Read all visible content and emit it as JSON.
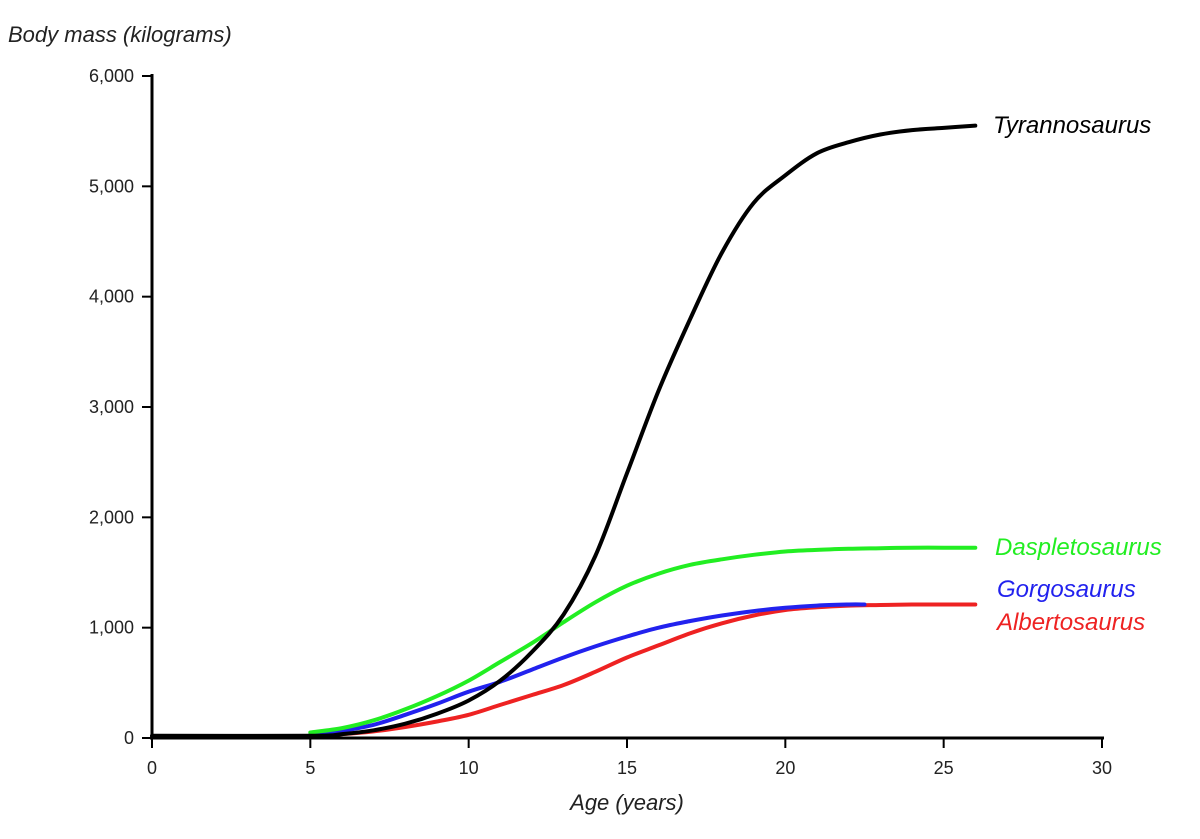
{
  "chart_data": {
    "type": "line",
    "title": "",
    "xlabel": "Age (years)",
    "ylabel": "Body mass (kilograms)",
    "xlim": [
      0,
      30
    ],
    "ylim": [
      0,
      6000
    ],
    "xticks": [
      0,
      5,
      10,
      15,
      20,
      25,
      30
    ],
    "xtick_labels": [
      "0",
      "5",
      "10",
      "15",
      "20",
      "25",
      "30"
    ],
    "yticks": [
      0,
      1000,
      2000,
      3000,
      4000,
      5000,
      6000
    ],
    "ytick_labels": [
      "0",
      "1,000",
      "2,000",
      "3,000",
      "4,000",
      "5,000",
      "6,000"
    ],
    "grid": false,
    "legend": "labels at line ends",
    "series": [
      {
        "name": "Tyrannosaurus",
        "color": "#000000",
        "x": [
          0,
          5,
          6,
          7,
          8,
          9,
          10,
          11,
          12,
          13,
          14,
          15,
          16,
          17,
          18,
          19,
          20,
          21,
          22,
          23,
          24,
          25,
          26
        ],
        "y": [
          20,
          20,
          35,
          70,
          130,
          220,
          340,
          520,
          780,
          1120,
          1650,
          2400,
          3150,
          3800,
          4400,
          4850,
          5100,
          5300,
          5400,
          5470,
          5510,
          5530,
          5550
        ]
      },
      {
        "name": "Daspletosaurus",
        "color": "#22ee22",
        "x": [
          5,
          6,
          7,
          8,
          9,
          10,
          11,
          12,
          13,
          14,
          15,
          16,
          17,
          18,
          19,
          20,
          21,
          22,
          23,
          24,
          25,
          26
        ],
        "y": [
          50,
          90,
          160,
          260,
          380,
          520,
          690,
          860,
          1050,
          1230,
          1380,
          1490,
          1570,
          1620,
          1660,
          1690,
          1705,
          1715,
          1720,
          1725,
          1725,
          1725
        ]
      },
      {
        "name": "Gorgosaurus",
        "color": "#2222ee",
        "x": [
          5,
          6,
          7,
          8,
          9,
          10,
          11,
          12,
          13,
          14,
          15,
          16,
          17,
          18,
          19,
          20,
          21,
          22,
          22.5
        ],
        "y": [
          30,
          65,
          120,
          210,
          310,
          420,
          510,
          620,
          730,
          830,
          920,
          1000,
          1060,
          1110,
          1150,
          1180,
          1200,
          1210,
          1210
        ]
      },
      {
        "name": "Albertosaurus",
        "color": "#ee2222",
        "x": [
          5,
          6,
          7,
          8,
          9,
          10,
          11,
          12,
          13,
          14,
          15,
          16,
          17,
          18,
          19,
          20,
          21,
          22,
          23,
          24,
          25,
          26
        ],
        "y": [
          20,
          35,
          60,
          100,
          150,
          210,
          300,
          390,
          480,
          600,
          730,
          840,
          950,
          1040,
          1110,
          1160,
          1185,
          1200,
          1205,
          1210,
          1210,
          1210
        ]
      }
    ]
  }
}
